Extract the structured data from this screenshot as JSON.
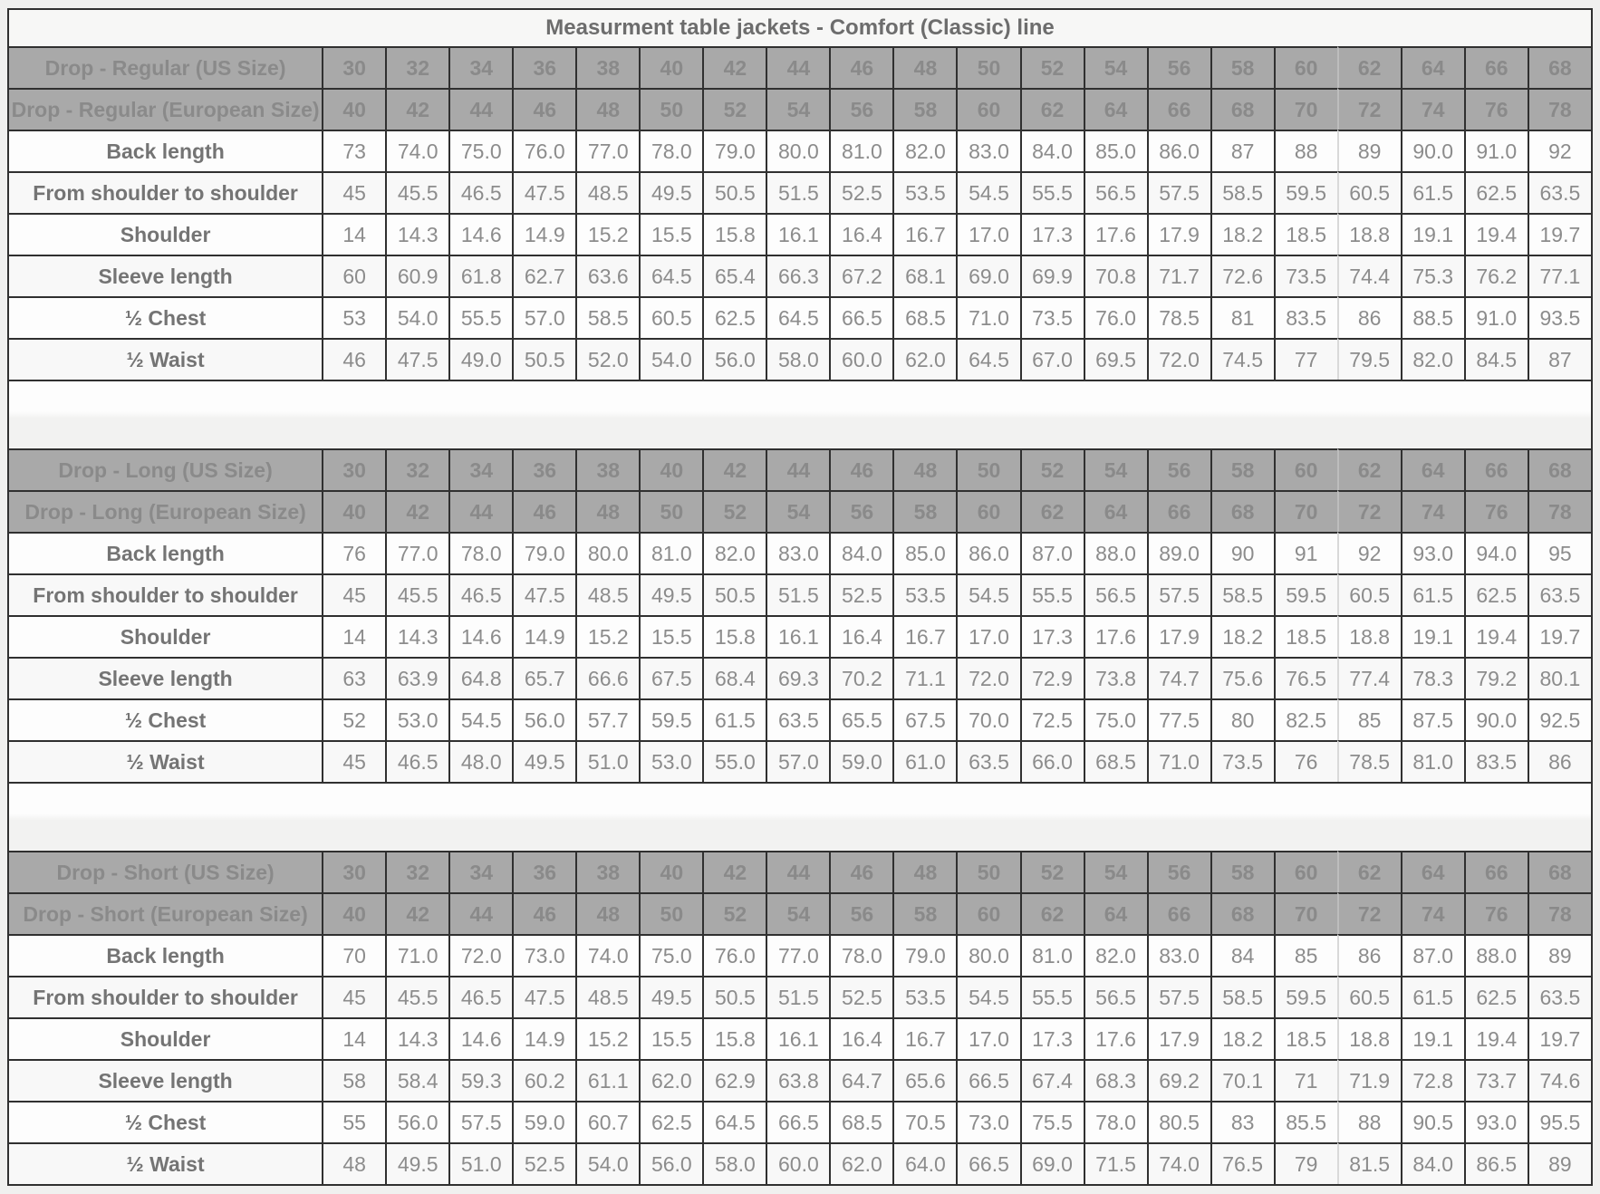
{
  "title": "Measurment table jackets - Comfort (Classic) line",
  "colors": {
    "page_background": "#f0f0ef",
    "border_dark": "#303030",
    "border_light": "#c9c9c9",
    "header_background": "#a9a9a9",
    "header_text": "#8a8a8a",
    "value_text": "#8c8c8c",
    "label_text": "#747474"
  },
  "sizes": {
    "us": [
      "30",
      "32",
      "34",
      "36",
      "38",
      "40",
      "42",
      "44",
      "46",
      "48",
      "50",
      "52",
      "54",
      "56",
      "58",
      "60",
      "62",
      "64",
      "66",
      "68"
    ],
    "eu": [
      "40",
      "42",
      "44",
      "46",
      "48",
      "50",
      "52",
      "54",
      "56",
      "58",
      "60",
      "62",
      "64",
      "66",
      "68",
      "70",
      "72",
      "74",
      "76",
      "78"
    ]
  },
  "sections": [
    {
      "us_header": "Drop - Regular (US Size)",
      "eu_header": "Drop - Regular (European Size)",
      "rows": [
        {
          "label": "Back length",
          "values": [
            "73",
            "74.0",
            "75.0",
            "76.0",
            "77.0",
            "78.0",
            "79.0",
            "80.0",
            "81.0",
            "82.0",
            "83.0",
            "84.0",
            "85.0",
            "86.0",
            "87",
            "88",
            "89",
            "90.0",
            "91.0",
            "92"
          ]
        },
        {
          "label": "From shoulder to shoulder",
          "values": [
            "45",
            "45.5",
            "46.5",
            "47.5",
            "48.5",
            "49.5",
            "50.5",
            "51.5",
            "52.5",
            "53.5",
            "54.5",
            "55.5",
            "56.5",
            "57.5",
            "58.5",
            "59.5",
            "60.5",
            "61.5",
            "62.5",
            "63.5"
          ]
        },
        {
          "label": "Shoulder",
          "values": [
            "14",
            "14.3",
            "14.6",
            "14.9",
            "15.2",
            "15.5",
            "15.8",
            "16.1",
            "16.4",
            "16.7",
            "17.0",
            "17.3",
            "17.6",
            "17.9",
            "18.2",
            "18.5",
            "18.8",
            "19.1",
            "19.4",
            "19.7"
          ]
        },
        {
          "label": "Sleeve length",
          "values": [
            "60",
            "60.9",
            "61.8",
            "62.7",
            "63.6",
            "64.5",
            "65.4",
            "66.3",
            "67.2",
            "68.1",
            "69.0",
            "69.9",
            "70.8",
            "71.7",
            "72.6",
            "73.5",
            "74.4",
            "75.3",
            "76.2",
            "77.1"
          ]
        },
        {
          "label": "½ Chest",
          "values": [
            "53",
            "54.0",
            "55.5",
            "57.0",
            "58.5",
            "60.5",
            "62.5",
            "64.5",
            "66.5",
            "68.5",
            "71.0",
            "73.5",
            "76.0",
            "78.5",
            "81",
            "83.5",
            "86",
            "88.5",
            "91.0",
            "93.5"
          ]
        },
        {
          "label": "½ Waist",
          "values": [
            "46",
            "47.5",
            "49.0",
            "50.5",
            "52.0",
            "54.0",
            "56.0",
            "58.0",
            "60.0",
            "62.0",
            "64.5",
            "67.0",
            "69.5",
            "72.0",
            "74.5",
            "77",
            "79.5",
            "82.0",
            "84.5",
            "87"
          ]
        }
      ]
    },
    {
      "us_header": "Drop - Long (US Size)",
      "eu_header": "Drop - Long (European Size)",
      "rows": [
        {
          "label": "Back length",
          "values": [
            "76",
            "77.0",
            "78.0",
            "79.0",
            "80.0",
            "81.0",
            "82.0",
            "83.0",
            "84.0",
            "85.0",
            "86.0",
            "87.0",
            "88.0",
            "89.0",
            "90",
            "91",
            "92",
            "93.0",
            "94.0",
            "95"
          ]
        },
        {
          "label": "From shoulder to shoulder",
          "values": [
            "45",
            "45.5",
            "46.5",
            "47.5",
            "48.5",
            "49.5",
            "50.5",
            "51.5",
            "52.5",
            "53.5",
            "54.5",
            "55.5",
            "56.5",
            "57.5",
            "58.5",
            "59.5",
            "60.5",
            "61.5",
            "62.5",
            "63.5"
          ]
        },
        {
          "label": "Shoulder",
          "values": [
            "14",
            "14.3",
            "14.6",
            "14.9",
            "15.2",
            "15.5",
            "15.8",
            "16.1",
            "16.4",
            "16.7",
            "17.0",
            "17.3",
            "17.6",
            "17.9",
            "18.2",
            "18.5",
            "18.8",
            "19.1",
            "19.4",
            "19.7"
          ]
        },
        {
          "label": "Sleeve length",
          "values": [
            "63",
            "63.9",
            "64.8",
            "65.7",
            "66.6",
            "67.5",
            "68.4",
            "69.3",
            "70.2",
            "71.1",
            "72.0",
            "72.9",
            "73.8",
            "74.7",
            "75.6",
            "76.5",
            "77.4",
            "78.3",
            "79.2",
            "80.1"
          ]
        },
        {
          "label": "½ Chest",
          "values": [
            "52",
            "53.0",
            "54.5",
            "56.0",
            "57.7",
            "59.5",
            "61.5",
            "63.5",
            "65.5",
            "67.5",
            "70.0",
            "72.5",
            "75.0",
            "77.5",
            "80",
            "82.5",
            "85",
            "87.5",
            "90.0",
            "92.5"
          ]
        },
        {
          "label": "½ Waist",
          "values": [
            "45",
            "46.5",
            "48.0",
            "49.5",
            "51.0",
            "53.0",
            "55.0",
            "57.0",
            "59.0",
            "61.0",
            "63.5",
            "66.0",
            "68.5",
            "71.0",
            "73.5",
            "76",
            "78.5",
            "81.0",
            "83.5",
            "86"
          ]
        }
      ]
    },
    {
      "us_header": "Drop - Short (US Size)",
      "eu_header": "Drop - Short (European Size)",
      "rows": [
        {
          "label": "Back length",
          "values": [
            "70",
            "71.0",
            "72.0",
            "73.0",
            "74.0",
            "75.0",
            "76.0",
            "77.0",
            "78.0",
            "79.0",
            "80.0",
            "81.0",
            "82.0",
            "83.0",
            "84",
            "85",
            "86",
            "87.0",
            "88.0",
            "89"
          ]
        },
        {
          "label": "From shoulder to shoulder",
          "values": [
            "45",
            "45.5",
            "46.5",
            "47.5",
            "48.5",
            "49.5",
            "50.5",
            "51.5",
            "52.5",
            "53.5",
            "54.5",
            "55.5",
            "56.5",
            "57.5",
            "58.5",
            "59.5",
            "60.5",
            "61.5",
            "62.5",
            "63.5"
          ]
        },
        {
          "label": "Shoulder",
          "values": [
            "14",
            "14.3",
            "14.6",
            "14.9",
            "15.2",
            "15.5",
            "15.8",
            "16.1",
            "16.4",
            "16.7",
            "17.0",
            "17.3",
            "17.6",
            "17.9",
            "18.2",
            "18.5",
            "18.8",
            "19.1",
            "19.4",
            "19.7"
          ]
        },
        {
          "label": "Sleeve length",
          "values": [
            "58",
            "58.4",
            "59.3",
            "60.2",
            "61.1",
            "62.0",
            "62.9",
            "63.8",
            "64.7",
            "65.6",
            "66.5",
            "67.4",
            "68.3",
            "69.2",
            "70.1",
            "71",
            "71.9",
            "72.8",
            "73.7",
            "74.6"
          ]
        },
        {
          "label": "½ Chest",
          "values": [
            "55",
            "56.0",
            "57.5",
            "59.0",
            "60.7",
            "62.5",
            "64.5",
            "66.5",
            "68.5",
            "70.5",
            "73.0",
            "75.5",
            "78.0",
            "80.5",
            "83",
            "85.5",
            "88",
            "90.5",
            "93.0",
            "95.5"
          ]
        },
        {
          "label": "½ Waist",
          "values": [
            "48",
            "49.5",
            "51.0",
            "52.5",
            "54.0",
            "56.0",
            "58.0",
            "60.0",
            "62.0",
            "64.0",
            "66.5",
            "69.0",
            "71.5",
            "74.0",
            "76.5",
            "79",
            "81.5",
            "84.0",
            "86.5",
            "89"
          ]
        }
      ]
    }
  ]
}
